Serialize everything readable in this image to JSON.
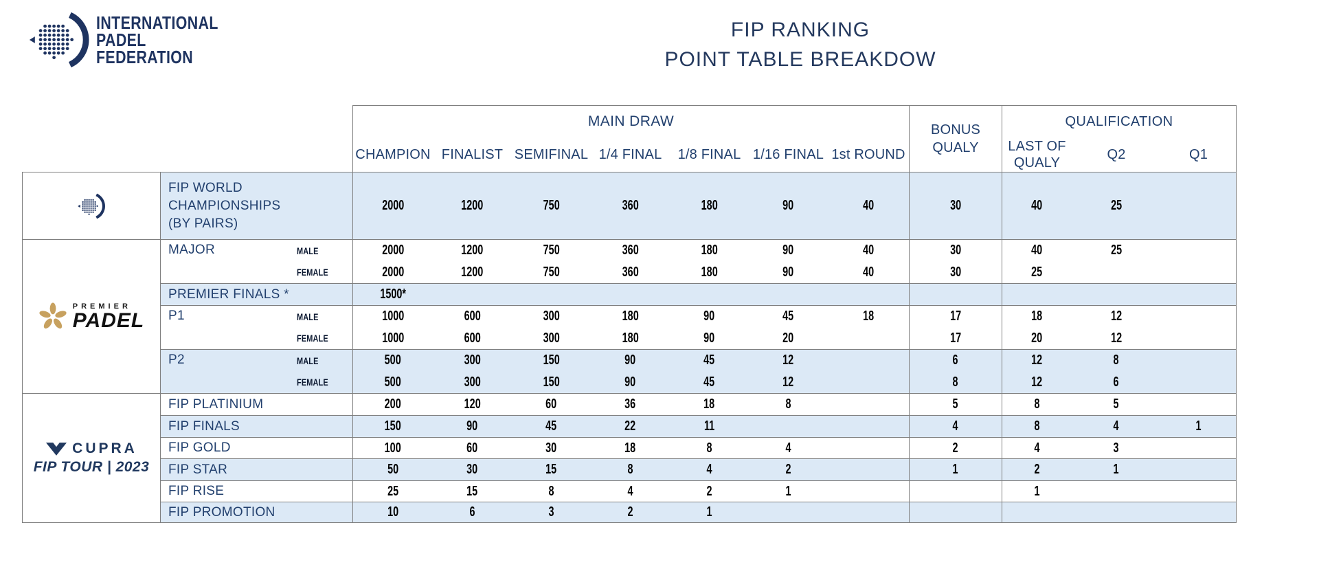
{
  "brand": {
    "name_lines": [
      "INTERNATIONAL",
      "PADEL",
      "FEDERATION"
    ]
  },
  "title": {
    "line1": "FIP RANKING",
    "line2": "POINT TABLE BREAKDOW"
  },
  "colors": {
    "navy": "#1F3864",
    "row_shade": "#DCE9F6",
    "border_gray": "#7f7f7f",
    "gold": "#C7A15F"
  },
  "section_logos": {
    "premier_top": "PREMIER",
    "premier_main": "PADEL",
    "cupra_name": "CUPRA",
    "cupra_sub": "FIP TOUR | 2023"
  },
  "table": {
    "header": {
      "main_draw": "MAIN DRAW",
      "bonus": [
        "BONUS",
        "QUALY"
      ],
      "qualification": "QUALIFICATION",
      "rounds": [
        "CHAMPION",
        "FINALIST",
        "SEMIFINAL",
        "1/4 FINAL",
        "1/8 FINAL",
        "1/16 FINAL",
        "1st ROUND"
      ],
      "last_of_qualy": "LAST OF QUALY",
      "q2": "Q2",
      "q1": "Q1"
    },
    "rows": [
      {
        "category": "FIP WORLD CHAMPIONSHIPS",
        "category2": "(BY PAIRS)",
        "gender": "",
        "values": [
          "2000",
          "1200",
          "750",
          "360",
          "180",
          "90",
          "40",
          "30",
          "40",
          "25",
          ""
        ]
      },
      {
        "category": "MAJOR",
        "gender": "MALE",
        "values": [
          "2000",
          "1200",
          "750",
          "360",
          "180",
          "90",
          "40",
          "30",
          "40",
          "25",
          ""
        ]
      },
      {
        "category": "",
        "gender": "FEMALE",
        "values": [
          "2000",
          "1200",
          "750",
          "360",
          "180",
          "90",
          "40",
          "30",
          "25",
          "",
          ""
        ]
      },
      {
        "category": "PREMIER FINALS *",
        "gender": "",
        "values": [
          "1500*",
          "",
          "",
          "",
          "",
          "",
          "",
          "",
          "",
          "",
          ""
        ]
      },
      {
        "category": "P1",
        "gender": "MALE",
        "values": [
          "1000",
          "600",
          "300",
          "180",
          "90",
          "45",
          "18",
          "17",
          "18",
          "12",
          ""
        ]
      },
      {
        "category": "",
        "gender": "FEMALE",
        "values": [
          "1000",
          "600",
          "300",
          "180",
          "90",
          "20",
          "",
          "17",
          "20",
          "12",
          ""
        ]
      },
      {
        "category": "P2",
        "gender": "MALE",
        "values": [
          "500",
          "300",
          "150",
          "90",
          "45",
          "12",
          "",
          "6",
          "12",
          "8",
          ""
        ]
      },
      {
        "category": "",
        "gender": "FEMALE",
        "values": [
          "500",
          "300",
          "150",
          "90",
          "45",
          "12",
          "",
          "8",
          "12",
          "6",
          ""
        ]
      },
      {
        "category": "FIP PLATINIUM",
        "gender": "",
        "values": [
          "200",
          "120",
          "60",
          "36",
          "18",
          "8",
          "",
          "5",
          "8",
          "5",
          ""
        ]
      },
      {
        "category": "FIP FINALS",
        "gender": "",
        "values": [
          "150",
          "90",
          "45",
          "22",
          "11",
          "",
          "",
          "4",
          "8",
          "4",
          "1"
        ]
      },
      {
        "category": "FIP GOLD",
        "gender": "",
        "values": [
          "100",
          "60",
          "30",
          "18",
          "8",
          "4",
          "",
          "2",
          "4",
          "3",
          ""
        ]
      },
      {
        "category": "FIP STAR",
        "gender": "",
        "values": [
          "50",
          "30",
          "15",
          "8",
          "4",
          "2",
          "",
          "1",
          "2",
          "1",
          ""
        ]
      },
      {
        "category": "FIP RISE",
        "gender": "",
        "values": [
          "25",
          "15",
          "8",
          "4",
          "2",
          "1",
          "",
          "",
          "1",
          "",
          ""
        ]
      },
      {
        "category": "FIP PROMOTION",
        "gender": "",
        "values": [
          "10",
          "6",
          "3",
          "2",
          "1",
          "",
          "",
          "",
          "",
          "",
          ""
        ]
      }
    ]
  }
}
